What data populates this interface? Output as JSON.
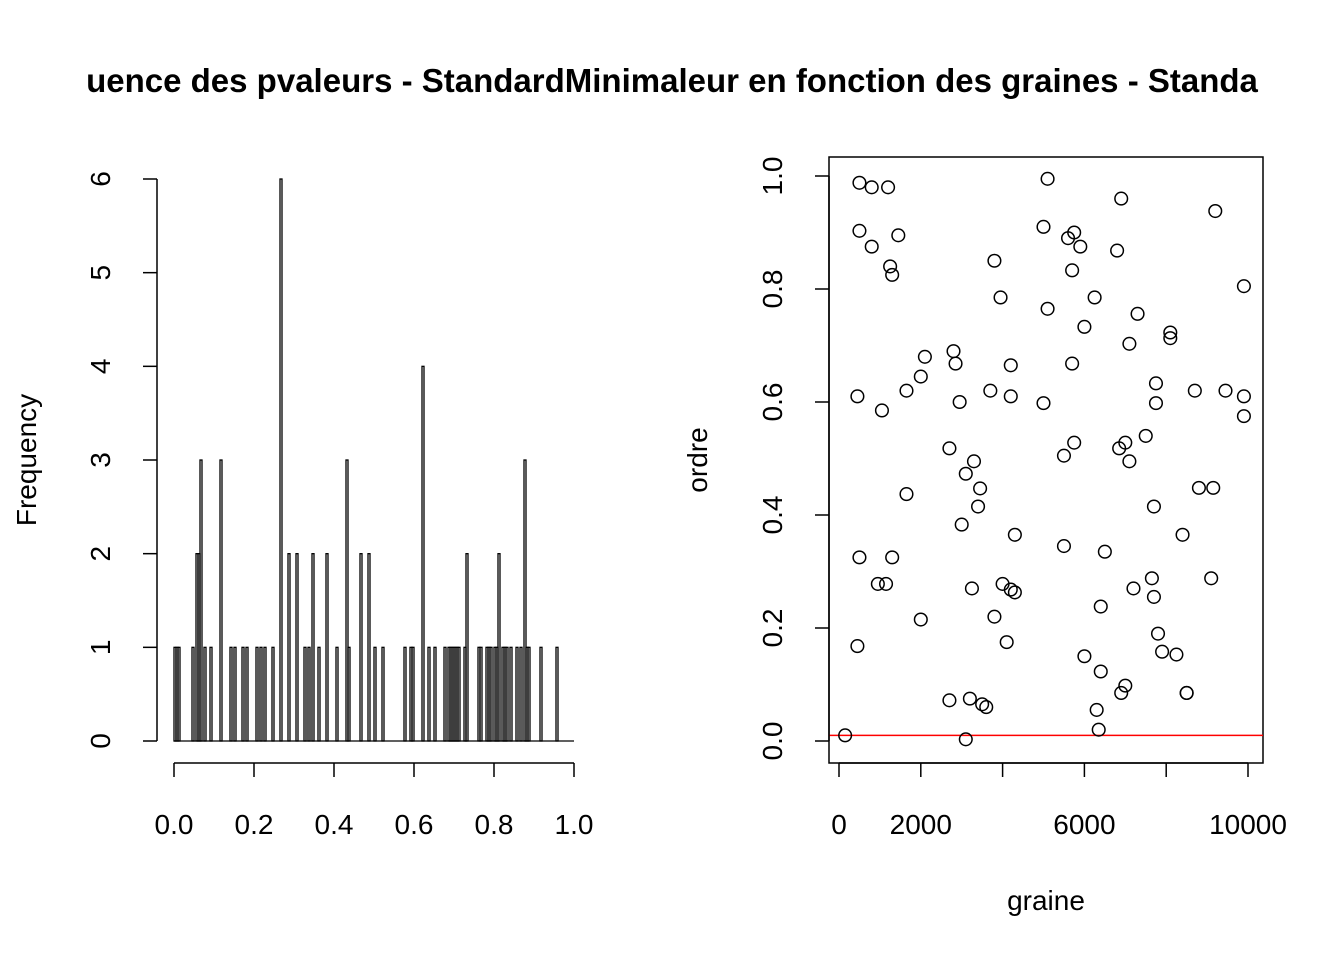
{
  "page_title": "uence des pvaleurs - StandardMinimaleur en fonction des graines - Standa",
  "chart_data": [
    {
      "type": "bar",
      "title": "",
      "xlabel": "",
      "ylabel": "Frequency",
      "xlim": [
        0,
        1
      ],
      "ylim": [
        0,
        6
      ],
      "x_ticks": [
        "0.0",
        "0.2",
        "0.4",
        "0.6",
        "0.8",
        "1.0"
      ],
      "y_ticks": [
        "0",
        "1",
        "2",
        "3",
        "4",
        "5",
        "6"
      ],
      "bin_width": 0.005,
      "bin_starts": [
        0.0,
        0.005,
        0.01,
        0.045,
        0.055,
        0.06,
        0.065,
        0.075,
        0.09,
        0.115,
        0.14,
        0.15,
        0.17,
        0.18,
        0.205,
        0.215,
        0.225,
        0.245,
        0.265,
        0.285,
        0.305,
        0.325,
        0.335,
        0.345,
        0.36,
        0.38,
        0.405,
        0.43,
        0.435,
        0.465,
        0.485,
        0.5,
        0.52,
        0.575,
        0.59,
        0.595,
        0.62,
        0.635,
        0.65,
        0.675,
        0.685,
        0.69,
        0.695,
        0.7,
        0.705,
        0.71,
        0.725,
        0.73,
        0.76,
        0.765,
        0.78,
        0.785,
        0.79,
        0.8,
        0.805,
        0.81,
        0.82,
        0.825,
        0.83,
        0.84,
        0.855,
        0.865,
        0.875,
        0.88,
        0.885,
        0.915,
        0.955
      ],
      "counts": [
        1,
        1,
        1,
        1,
        2,
        2,
        3,
        1,
        1,
        3,
        1,
        1,
        1,
        1,
        1,
        1,
        1,
        1,
        6,
        2,
        2,
        1,
        1,
        2,
        1,
        2,
        1,
        3,
        1,
        2,
        2,
        1,
        1,
        1,
        1,
        1,
        4,
        1,
        1,
        1,
        1,
        1,
        1,
        1,
        1,
        1,
        1,
        2,
        1,
        1,
        1,
        1,
        1,
        1,
        1,
        2,
        1,
        1,
        1,
        1,
        1,
        1,
        3,
        1,
        1,
        1,
        1
      ]
    },
    {
      "type": "scatter",
      "title": "",
      "xlabel": "graine",
      "ylabel": "ordre",
      "xlim": [
        0,
        10000
      ],
      "ylim": [
        0,
        1
      ],
      "x_ticks": [
        "0",
        "2000",
        "6000",
        "10000"
      ],
      "y_ticks": [
        "0.0",
        "0.2",
        "0.4",
        "0.6",
        "0.8",
        "1.0"
      ],
      "hline": {
        "y": 0.01,
        "color": "#ff0000"
      },
      "points": [
        [
          150,
          0.01
        ],
        [
          500,
          0.988
        ],
        [
          800,
          0.98
        ],
        [
          1200,
          0.98
        ],
        [
          500,
          0.903
        ],
        [
          800,
          0.875
        ],
        [
          1450,
          0.895
        ],
        [
          1250,
          0.84
        ],
        [
          1300,
          0.825
        ],
        [
          450,
          0.61
        ],
        [
          1050,
          0.585
        ],
        [
          1650,
          0.62
        ],
        [
          2000,
          0.645
        ],
        [
          2100,
          0.68
        ],
        [
          1650,
          0.437
        ],
        [
          500,
          0.325
        ],
        [
          1300,
          0.325
        ],
        [
          950,
          0.278
        ],
        [
          1150,
          0.278
        ],
        [
          450,
          0.168
        ],
        [
          2000,
          0.215
        ],
        [
          2700,
          0.518
        ],
        [
          2800,
          0.69
        ],
        [
          2850,
          0.668
        ],
        [
          2950,
          0.6
        ],
        [
          3000,
          0.383
        ],
        [
          3100,
          0.473
        ],
        [
          3250,
          0.27
        ],
        [
          3300,
          0.495
        ],
        [
          3400,
          0.415
        ],
        [
          3450,
          0.447
        ],
        [
          3100,
          0.003
        ],
        [
          2700,
          0.072
        ],
        [
          3200,
          0.075
        ],
        [
          3500,
          0.065
        ],
        [
          3600,
          0.06
        ],
        [
          3800,
          0.22
        ],
        [
          4000,
          0.278
        ],
        [
          4100,
          0.175
        ],
        [
          4200,
          0.268
        ],
        [
          4300,
          0.263
        ],
        [
          4300,
          0.365
        ],
        [
          3800,
          0.85
        ],
        [
          3950,
          0.785
        ],
        [
          3700,
          0.62
        ],
        [
          4200,
          0.665
        ],
        [
          4200,
          0.61
        ],
        [
          5000,
          0.91
        ],
        [
          5100,
          0.995
        ],
        [
          5100,
          0.765
        ],
        [
          5000,
          0.598
        ],
        [
          5500,
          0.505
        ],
        [
          5500,
          0.345
        ],
        [
          5600,
          0.89
        ],
        [
          5750,
          0.9
        ],
        [
          5700,
          0.833
        ],
        [
          5900,
          0.875
        ],
        [
          5700,
          0.668
        ],
        [
          5750,
          0.528
        ],
        [
          6000,
          0.733
        ],
        [
          6250,
          0.785
        ],
        [
          6000,
          0.15
        ],
        [
          6300,
          0.055
        ],
        [
          6350,
          0.02
        ],
        [
          6400,
          0.123
        ],
        [
          6400,
          0.238
        ],
        [
          6500,
          0.335
        ],
        [
          6800,
          0.868
        ],
        [
          6900,
          0.96
        ],
        [
          6850,
          0.518
        ],
        [
          7000,
          0.528
        ],
        [
          7100,
          0.703
        ],
        [
          7100,
          0.495
        ],
        [
          7300,
          0.756
        ],
        [
          7200,
          0.27
        ],
        [
          6900,
          0.085
        ],
        [
          7000,
          0.098
        ],
        [
          7500,
          0.54
        ],
        [
          7650,
          0.288
        ],
        [
          7700,
          0.255
        ],
        [
          7700,
          0.415
        ],
        [
          7750,
          0.633
        ],
        [
          7750,
          0.598
        ],
        [
          7800,
          0.19
        ],
        [
          7900,
          0.158
        ],
        [
          8100,
          0.723
        ],
        [
          8100,
          0.713
        ],
        [
          8250,
          0.153
        ],
        [
          8400,
          0.365
        ],
        [
          8500,
          0.085
        ],
        [
          8500,
          0.085
        ],
        [
          8700,
          0.62
        ],
        [
          8800,
          0.448
        ],
        [
          9100,
          0.288
        ],
        [
          9150,
          0.448
        ],
        [
          9200,
          0.938
        ],
        [
          9450,
          0.62
        ],
        [
          9900,
          0.805
        ],
        [
          9900,
          0.61
        ],
        [
          9900,
          0.575
        ]
      ]
    }
  ]
}
